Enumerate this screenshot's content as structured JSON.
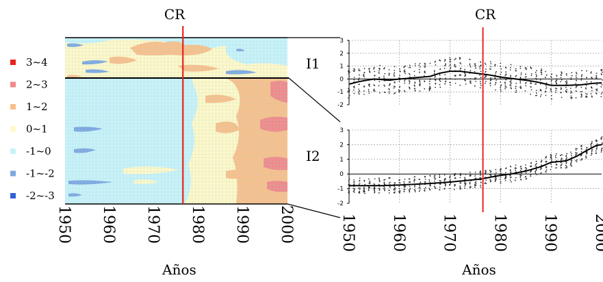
{
  "colors": {
    "red_line": "#e8231c",
    "dark_red": "#e8231c",
    "pink": "#f08a8a",
    "orange": "#f8c08c",
    "cream": "#fff8c8",
    "light_cyan": "#c8f2f8",
    "light_blue": "#7ea8e0",
    "blue": "#2f63d4",
    "grid": "#9fd0d8",
    "black": "#000000"
  },
  "chart_data": [
    {
      "type": "heatmap",
      "name": "hovmoller",
      "title": "",
      "xlabel": "Años",
      "ylabel": "",
      "xlim": [
        1950,
        2000
      ],
      "x_ticks": [
        "1950",
        "1960",
        "1970",
        "1980",
        "1990",
        "2000"
      ],
      "marker_label": "CR",
      "marker_x": 1976.5,
      "panel_labels": [
        "I1",
        "I2"
      ],
      "legend": {
        "placement": "left",
        "entries": [
          {
            "label": "3~4",
            "color": "#e8231c"
          },
          {
            "label": "2~3",
            "color": "#f08a8a"
          },
          {
            "label": "1~2",
            "color": "#f8c08c"
          },
          {
            "label": "0~1",
            "color": "#fff8c8"
          },
          {
            "label": "-1~0",
            "color": "#c8f2f8"
          },
          {
            "label": "-1~-2",
            "color": "#7ea8e0"
          },
          {
            "label": "-2~-3",
            "color": "#2f63d4"
          }
        ]
      }
    },
    {
      "type": "scatter",
      "name": "I1",
      "title": "",
      "xlabel": "",
      "ylabel": "",
      "xlim": [
        1950,
        2000
      ],
      "ylim": [
        -2,
        3
      ],
      "y_ticks": [
        "3",
        "2",
        "1",
        "0",
        "-1",
        "-2"
      ],
      "marker_label": "CR",
      "marker_x": 1976.5,
      "grid": true,
      "mean_series": {
        "x": [
          1950,
          1952,
          1955,
          1958,
          1960,
          1963,
          1966,
          1968,
          1970,
          1972,
          1975,
          1978,
          1980,
          1983,
          1986,
          1988,
          1990,
          1993,
          1996,
          1998,
          2000
        ],
        "values": [
          -0.4,
          -0.2,
          0.0,
          -0.1,
          0.0,
          0.1,
          0.2,
          0.45,
          0.6,
          0.6,
          0.45,
          0.3,
          0.15,
          0.0,
          -0.15,
          -0.3,
          -0.5,
          -0.5,
          -0.45,
          -0.35,
          -0.3
        ]
      }
    },
    {
      "type": "scatter",
      "name": "I2",
      "title": "",
      "xlabel": "Años",
      "ylabel": "",
      "xlim": [
        1950,
        2000
      ],
      "ylim": [
        -2,
        3
      ],
      "y_ticks": [
        "3",
        "2",
        "1",
        "0",
        "-1",
        "-2"
      ],
      "x_ticks": [
        "1950",
        "1960",
        "1970",
        "1980",
        "1990",
        "2000"
      ],
      "marker_label": "CR",
      "marker_x": 1976.5,
      "grid": true,
      "mean_series": {
        "x": [
          1950,
          1953,
          1956,
          1960,
          1963,
          1966,
          1970,
          1973,
          1976,
          1979,
          1982,
          1985,
          1988,
          1990,
          1993,
          1995,
          1997,
          1999,
          2000
        ],
        "values": [
          -0.8,
          -0.8,
          -0.8,
          -0.75,
          -0.7,
          -0.65,
          -0.55,
          -0.45,
          -0.35,
          -0.15,
          0.0,
          0.2,
          0.5,
          0.8,
          0.9,
          1.2,
          1.6,
          1.95,
          2.0
        ]
      }
    }
  ]
}
